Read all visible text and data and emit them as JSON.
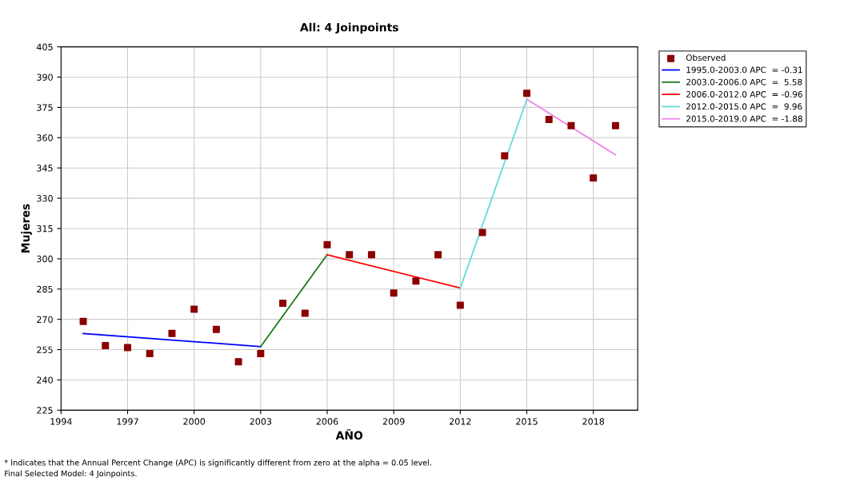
{
  "chart_data": {
    "type": "scatter",
    "title": "All: 4 Joinpoints",
    "xlabel": "AÑO",
    "ylabel": "Mujeres",
    "xlim": [
      1994,
      2020
    ],
    "xticks": [
      1994,
      1997,
      2000,
      2003,
      2006,
      2009,
      2012,
      2015,
      2018
    ],
    "ylim": [
      225,
      405
    ],
    "yticks": [
      225,
      240,
      255,
      270,
      285,
      300,
      315,
      330,
      345,
      360,
      375,
      390,
      405
    ],
    "grid": true,
    "legend": "right",
    "series": [
      {
        "name": "Observed",
        "marker": "square",
        "color": "#8b0000",
        "x": [
          1995,
          1996,
          1997,
          1998,
          1999,
          2000,
          2001,
          2002,
          2003,
          2004,
          2005,
          2006,
          2007,
          2008,
          2009,
          2010,
          2011,
          2012,
          2013,
          2014,
          2015,
          2016,
          2017,
          2018,
          2019
        ],
        "values": [
          269,
          257,
          256,
          253,
          263,
          275,
          265,
          249,
          253,
          278,
          273,
          307,
          302,
          302,
          283,
          289,
          302,
          277,
          313,
          351,
          382,
          369,
          366,
          340,
          366
        ]
      },
      {
        "name": "1995.0-2003.0 APC  = -0.31",
        "type": "line",
        "color": "#0000ff",
        "x": [
          1995,
          2003
        ],
        "values": [
          263,
          256.5
        ]
      },
      {
        "name": "2003.0-2006.0 APC  =  5.58",
        "type": "line",
        "color": "#1a7a1a",
        "x": [
          2003,
          2006
        ],
        "values": [
          256.5,
          302
        ]
      },
      {
        "name": "2006.0-2012.0 APC  = -0.96",
        "type": "line",
        "color": "#ff0000",
        "x": [
          2006,
          2012
        ],
        "values": [
          302,
          285.5
        ]
      },
      {
        "name": "2012.0-2015.0 APC  =  9.96",
        "type": "line",
        "color": "#66d9d9",
        "x": [
          2012,
          2015
        ],
        "values": [
          285.5,
          379
        ]
      },
      {
        "name": "2015.0-2019.0 APC  = -1.88",
        "type": "line",
        "color": "#ee82ee",
        "x": [
          2015,
          2019
        ],
        "values": [
          379,
          351.5
        ]
      }
    ],
    "annotations": [
      "* Indicates that the Annual Percent Change (APC) is significantly different from zero at the alpha = 0.05 level.",
      "Final Selected Model: 4 Joinpoints."
    ]
  }
}
